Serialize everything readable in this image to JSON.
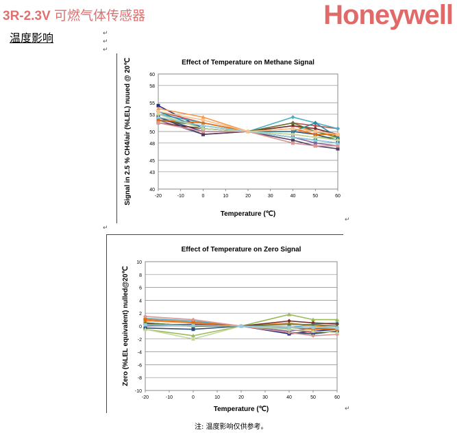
{
  "header": {
    "model": "3R-2.3V",
    "product": "可燃气体传感器",
    "brand": "Honeywell"
  },
  "section_title": "温度影响",
  "note": "注: 温度影响仅供参考。",
  "chart_data": [
    {
      "type": "line",
      "title": "Effect of Temperature on Methane Signal",
      "xlabel": "Temperature (℃)",
      "ylabel": "Signal in 2.5 % CH4/air (%LEL) nuued @ 20℃",
      "x": [
        -20,
        0,
        20,
        40,
        50,
        60
      ],
      "xlim": [
        -20,
        60
      ],
      "ylim": [
        40,
        60
      ],
      "yticks": [
        40,
        43,
        45,
        48,
        50,
        53,
        55,
        58,
        60
      ],
      "xticks": [
        -20,
        -10,
        0,
        10,
        20,
        30,
        40,
        50,
        60
      ],
      "grid": true,
      "series": [
        {
          "color": "#1f2a80",
          "values": [
            54.5,
            50.5,
            50,
            49,
            48.5,
            48
          ]
        },
        {
          "color": "#c0504d",
          "values": [
            53.5,
            51.5,
            50,
            51.5,
            51,
            50.5
          ]
        },
        {
          "color": "#9bbb59",
          "values": [
            53,
            50.5,
            50,
            49.5,
            49,
            49
          ]
        },
        {
          "color": "#8064a2",
          "values": [
            52,
            49.5,
            50,
            49,
            48,
            47.5
          ]
        },
        {
          "color": "#4bacc6",
          "values": [
            53,
            51.5,
            50,
            52.5,
            51.5,
            50.5
          ]
        },
        {
          "color": "#f79646",
          "values": [
            54,
            52.5,
            50,
            51,
            50,
            49.5
          ]
        },
        {
          "color": "#2c4d75",
          "values": [
            52.5,
            50,
            50,
            50,
            49.5,
            48.5
          ]
        },
        {
          "color": "#772c2a",
          "values": [
            51.5,
            50.5,
            50,
            51,
            50.5,
            49.5
          ]
        },
        {
          "color": "#5f7530",
          "values": [
            52,
            51,
            50,
            51.5,
            50,
            49
          ]
        },
        {
          "color": "#4d3b62",
          "values": [
            52.5,
            49.5,
            50,
            48.5,
            47.5,
            47
          ]
        },
        {
          "color": "#31859c",
          "values": [
            53.5,
            50.5,
            50,
            50,
            51.5,
            49
          ]
        },
        {
          "color": "#e46c0a",
          "values": [
            52,
            51.5,
            50,
            50.5,
            49.5,
            49.5
          ]
        },
        {
          "color": "#d99694",
          "values": [
            51.5,
            50,
            50,
            48,
            47.5,
            47.5
          ]
        },
        {
          "color": "#c3d69b",
          "values": [
            53,
            50.5,
            50,
            49.5,
            49,
            48.5
          ]
        },
        {
          "color": "#93cddd",
          "values": [
            52.5,
            51,
            50,
            49,
            48.5,
            48
          ]
        },
        {
          "color": "#fac090",
          "values": [
            53.5,
            52,
            50,
            50.5,
            50,
            49.5
          ]
        }
      ]
    },
    {
      "type": "line",
      "title": "Effect of  Temperature on Zero Signal",
      "xlabel": "Temperature (℃)",
      "ylabel": "Zero (%LEL equivalent) nulled@20℃",
      "x": [
        -20,
        0,
        20,
        40,
        50,
        60
      ],
      "xlim": [
        -20,
        60
      ],
      "ylim": [
        -10,
        10
      ],
      "yticks": [
        -10,
        -8,
        -6,
        -4,
        -2,
        0,
        2,
        4,
        6,
        8,
        10
      ],
      "xticks": [
        -20,
        -10,
        0,
        10,
        20,
        30,
        40,
        50,
        60
      ],
      "grid": true,
      "series": [
        {
          "color": "#1f2a80",
          "values": [
            0.5,
            0,
            0,
            -1.2,
            -0.8,
            -0.5
          ]
        },
        {
          "color": "#c0504d",
          "values": [
            1,
            0.5,
            0,
            -0.5,
            -1,
            -0.8
          ]
        },
        {
          "color": "#9bbb59",
          "values": [
            -0.5,
            -1.5,
            0,
            1.8,
            1,
            1
          ]
        },
        {
          "color": "#8064a2",
          "values": [
            0,
            0.3,
            0,
            -0.8,
            -0.3,
            -0.5
          ]
        },
        {
          "color": "#4bacc6",
          "values": [
            1.2,
            0.8,
            0,
            -0.3,
            0.3,
            0.5
          ]
        },
        {
          "color": "#f79646",
          "values": [
            0.8,
            0.5,
            0,
            0.5,
            0,
            -0.3
          ]
        },
        {
          "color": "#2c4d75",
          "values": [
            -0.3,
            -0.5,
            0,
            -1,
            -1.2,
            -0.8
          ]
        },
        {
          "color": "#772c2a",
          "values": [
            0.3,
            0.2,
            0,
            0.8,
            0.5,
            0.3
          ]
        },
        {
          "color": "#5f7530",
          "values": [
            0.5,
            0,
            0,
            0.3,
            0.2,
            0
          ]
        },
        {
          "color": "#e46c0a",
          "values": [
            1,
            0.6,
            0,
            -0.2,
            -0.5,
            -0.5
          ]
        },
        {
          "color": "#d99694",
          "values": [
            1.5,
            1,
            0,
            -1,
            -1.5,
            -1.3
          ]
        },
        {
          "color": "#c3d69b",
          "values": [
            -0.5,
            -2,
            0,
            -0.5,
            -0.8,
            -1
          ]
        },
        {
          "color": "#93cddd",
          "values": [
            0.2,
            0.1,
            0,
            -0.2,
            -0.2,
            -0.3
          ]
        }
      ]
    }
  ]
}
